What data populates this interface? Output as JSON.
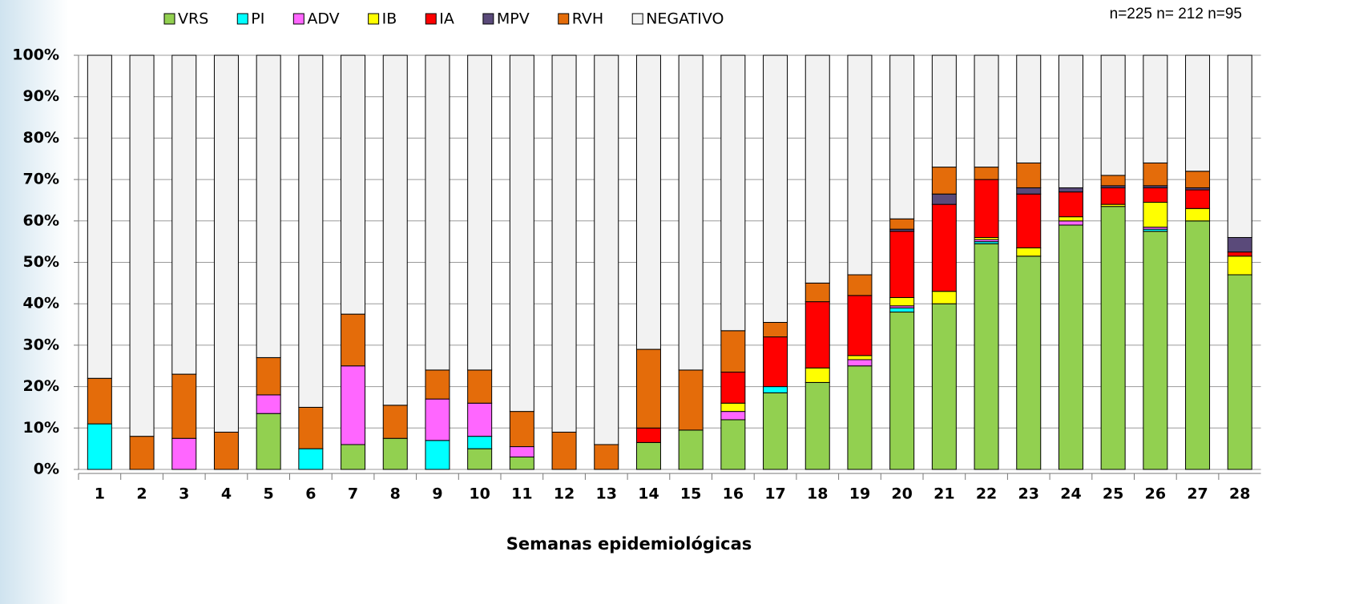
{
  "chart_data": {
    "type": "stacked_bar",
    "x_label": "Semanas epidemiológicas",
    "annotation": "n=225 n= 212 n=95",
    "categories": [
      "1",
      "2",
      "3",
      "4",
      "5",
      "6",
      "7",
      "8",
      "9",
      "10",
      "11",
      "12",
      "13",
      "14",
      "15",
      "16",
      "17",
      "18",
      "19",
      "20",
      "21",
      "22",
      "23",
      "24",
      "25",
      "26",
      "27",
      "28"
    ],
    "ylim": [
      0,
      100
    ],
    "yticks": [
      {
        "value": 0,
        "label": "0%"
      },
      {
        "value": 10,
        "label": "10%"
      },
      {
        "value": 20,
        "label": "20%"
      },
      {
        "value": 30,
        "label": "30%"
      },
      {
        "value": 40,
        "label": "40%"
      },
      {
        "value": 50,
        "label": "50%"
      },
      {
        "value": 60,
        "label": "60%"
      },
      {
        "value": 70,
        "label": "70%"
      },
      {
        "value": 80,
        "label": "80%"
      },
      {
        "value": 90,
        "label": "90%"
      },
      {
        "value": 100,
        "label": "100%"
      }
    ],
    "grid": true,
    "series": [
      {
        "name": "VRS",
        "color": "#92d050",
        "values": [
          0,
          0,
          0,
          0,
          13.5,
          0,
          6,
          7.5,
          0,
          5,
          3,
          0,
          0,
          6.5,
          9.5,
          12,
          18.5,
          21,
          25,
          38,
          40,
          54.5,
          51.5,
          59,
          63.5,
          57.5,
          60,
          47
        ]
      },
      {
        "name": "PI",
        "color": "#00ffff",
        "values": [
          11,
          0,
          0,
          0,
          0,
          5,
          0,
          0,
          7,
          3,
          0,
          0,
          0,
          0,
          0,
          0,
          1.5,
          0,
          0,
          1,
          0,
          0.5,
          0,
          0,
          0,
          0.5,
          0,
          0
        ]
      },
      {
        "name": "ADV",
        "color": "#ff66ff",
        "values": [
          0,
          0,
          7.5,
          0,
          4.5,
          0,
          19,
          0,
          10,
          8,
          2.5,
          0,
          0,
          0,
          0,
          2,
          0,
          0,
          1.5,
          0.5,
          0,
          0.5,
          0,
          1,
          0,
          0.5,
          0,
          0
        ]
      },
      {
        "name": "IB",
        "color": "#ffff00",
        "values": [
          0,
          0,
          0,
          0,
          0,
          0,
          0,
          0,
          0,
          0,
          0,
          0,
          0,
          0,
          0,
          2,
          0,
          3.5,
          1,
          2,
          3,
          0.5,
          2,
          1,
          0.5,
          6,
          3,
          4.5
        ]
      },
      {
        "name": "IA",
        "color": "#ff0000",
        "values": [
          0,
          0,
          0,
          0,
          0,
          0,
          0,
          0,
          0,
          0,
          0,
          0,
          0,
          3.5,
          0,
          7.5,
          12,
          16,
          14.5,
          16,
          21,
          14,
          13,
          6,
          4,
          3.5,
          4.5,
          1
        ]
      },
      {
        "name": "MPV",
        "color": "#5a4a7a",
        "values": [
          0,
          0,
          0,
          0,
          0,
          0,
          0,
          0,
          0,
          0,
          0,
          0,
          0,
          0,
          0,
          0,
          0,
          0,
          0,
          0.5,
          2.5,
          0,
          1.5,
          1,
          0.5,
          0.5,
          0.5,
          3.5
        ]
      },
      {
        "name": "RVH",
        "color": "#e46c0a",
        "values": [
          11,
          8,
          15.5,
          9,
          9,
          10,
          12.5,
          8,
          7,
          8,
          8.5,
          9,
          6,
          19,
          14.5,
          10,
          3.5,
          4.5,
          5,
          2.5,
          6.5,
          3,
          6,
          0,
          2.5,
          5.5,
          4,
          0
        ]
      },
      {
        "name": "NEGATIVO",
        "color": "#f2f2f2",
        "values": [
          78,
          92,
          77,
          91,
          73,
          85,
          62.5,
          84.5,
          76,
          76,
          86,
          91,
          94,
          71,
          76,
          66.5,
          64.5,
          55,
          53,
          39.5,
          27,
          27,
          26,
          32,
          29,
          26,
          28,
          44
        ]
      }
    ]
  }
}
